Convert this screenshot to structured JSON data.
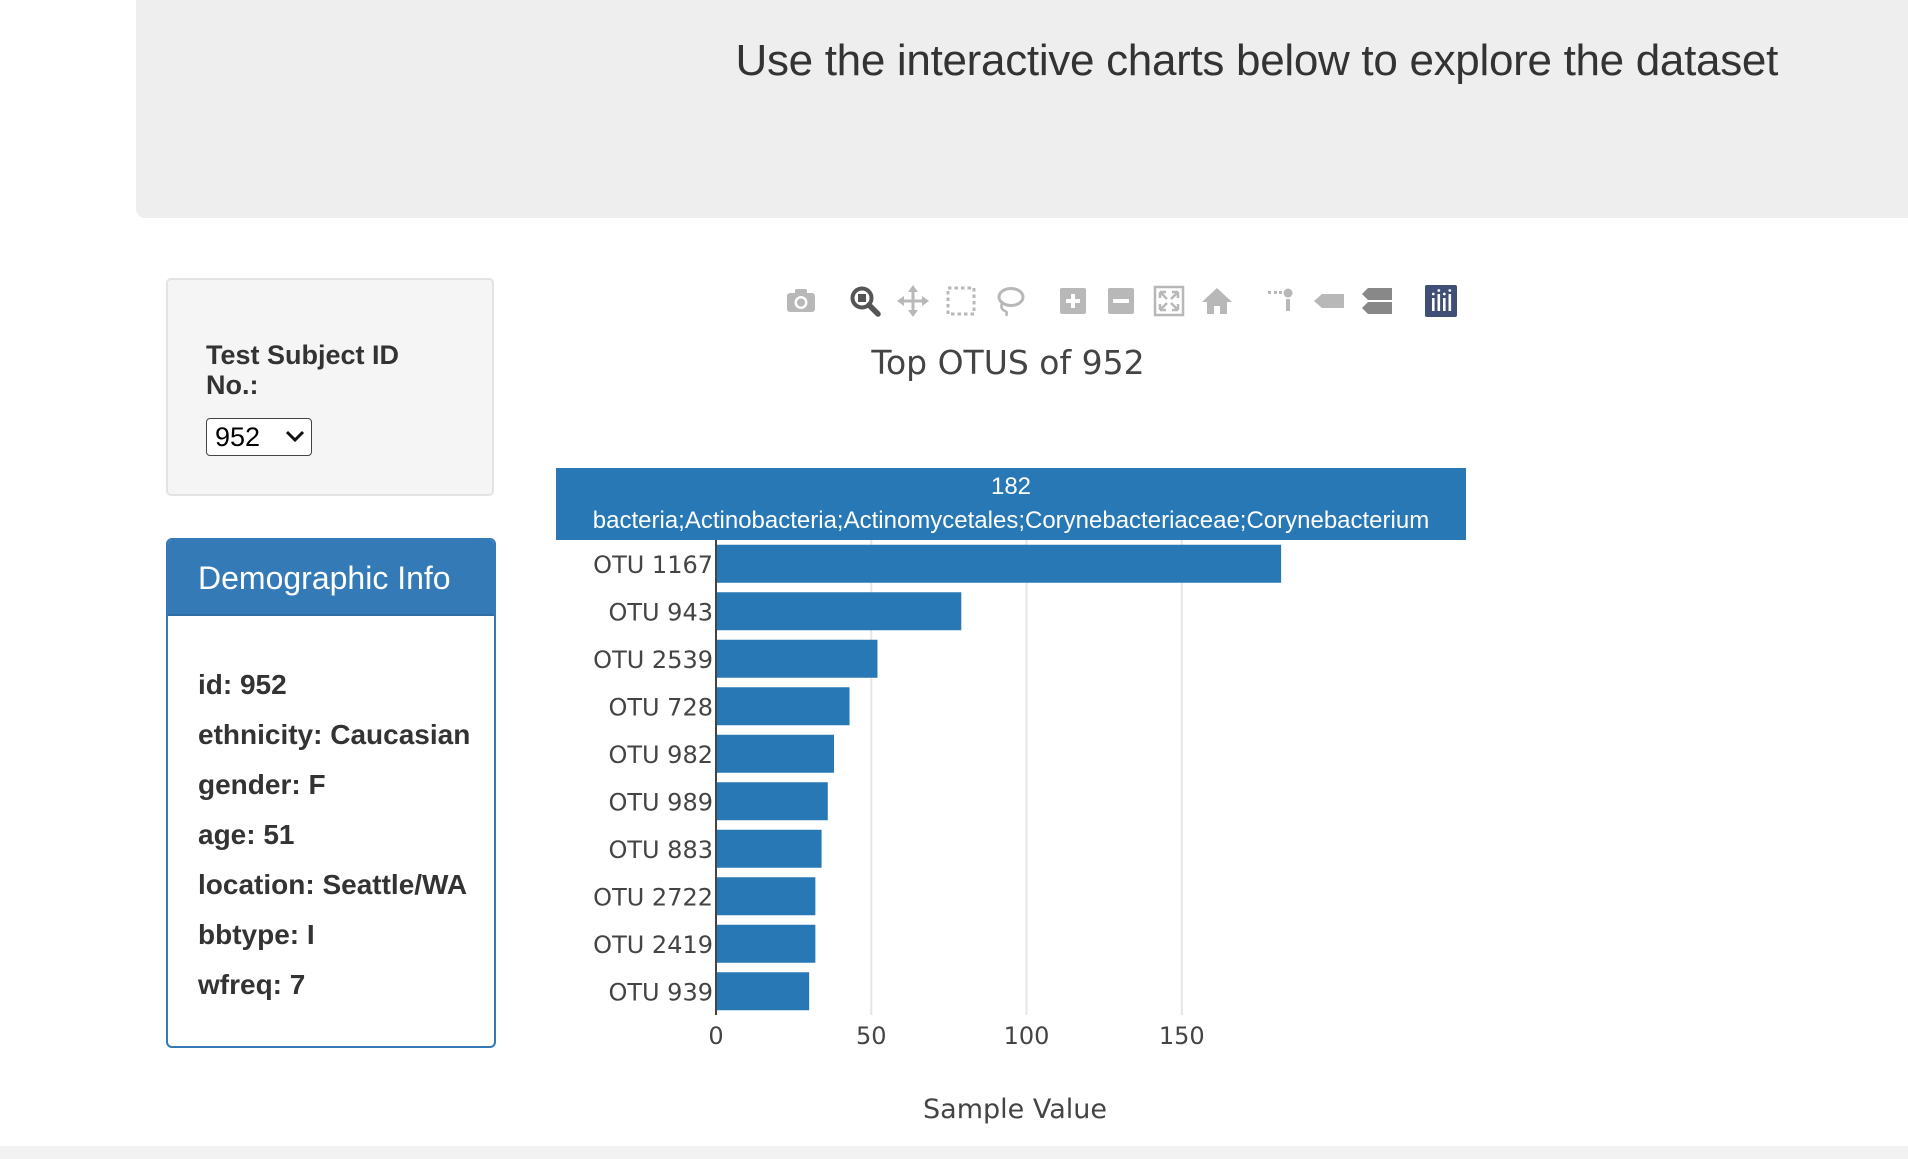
{
  "header": {
    "subtitle": "Use the interactive charts below to explore the dataset"
  },
  "selector": {
    "label": "Test Subject ID No.:",
    "selected": "952"
  },
  "demographics": {
    "title": "Demographic Info",
    "lines": [
      "id: 952",
      "ethnicity: Caucasian",
      "gender: F",
      "age: 51",
      "location: Seattle/WA",
      "bbtype: I",
      "wfreq: 7"
    ]
  },
  "modebar": {
    "icons": [
      {
        "name": "camera-icon",
        "active": false
      },
      {
        "name": "zoom-icon",
        "active": true
      },
      {
        "name": "pan-icon",
        "active": false
      },
      {
        "name": "box-select-icon",
        "active": false
      },
      {
        "name": "lasso-select-icon",
        "active": false
      },
      {
        "name": "zoom-in-icon",
        "active": false
      },
      {
        "name": "zoom-out-icon",
        "active": false
      },
      {
        "name": "autoscale-icon",
        "active": false
      },
      {
        "name": "reset-axes-icon",
        "active": false
      },
      {
        "name": "toggle-spike-lines-icon",
        "active": false
      },
      {
        "name": "show-closest-hover-icon",
        "active": false
      },
      {
        "name": "compare-hover-icon",
        "active": false
      },
      {
        "name": "plotly-logo-icon",
        "active": false
      }
    ]
  },
  "hover": {
    "value": "182",
    "label": "bacteria;Actinobacteria;Actinomycetales;Corynebacteriaceae;Corynebacterium"
  },
  "chart_data": {
    "type": "bar",
    "orientation": "horizontal",
    "title": "Top OTUS of 952",
    "xlabel": "Sample Value",
    "ylabel": "",
    "categories": [
      "OTU 939",
      "OTU 2419",
      "OTU 2722",
      "OTU 883",
      "OTU 989",
      "OTU 982",
      "OTU 728",
      "OTU 2539",
      "OTU 943",
      "OTU 1167"
    ],
    "values": [
      30,
      32,
      32,
      34,
      36,
      38,
      43,
      52,
      79,
      182
    ],
    "xlim": [
      0,
      200
    ],
    "xticks": [
      0,
      50,
      100,
      150
    ],
    "grid": true,
    "bar_color": "#2878b5"
  }
}
